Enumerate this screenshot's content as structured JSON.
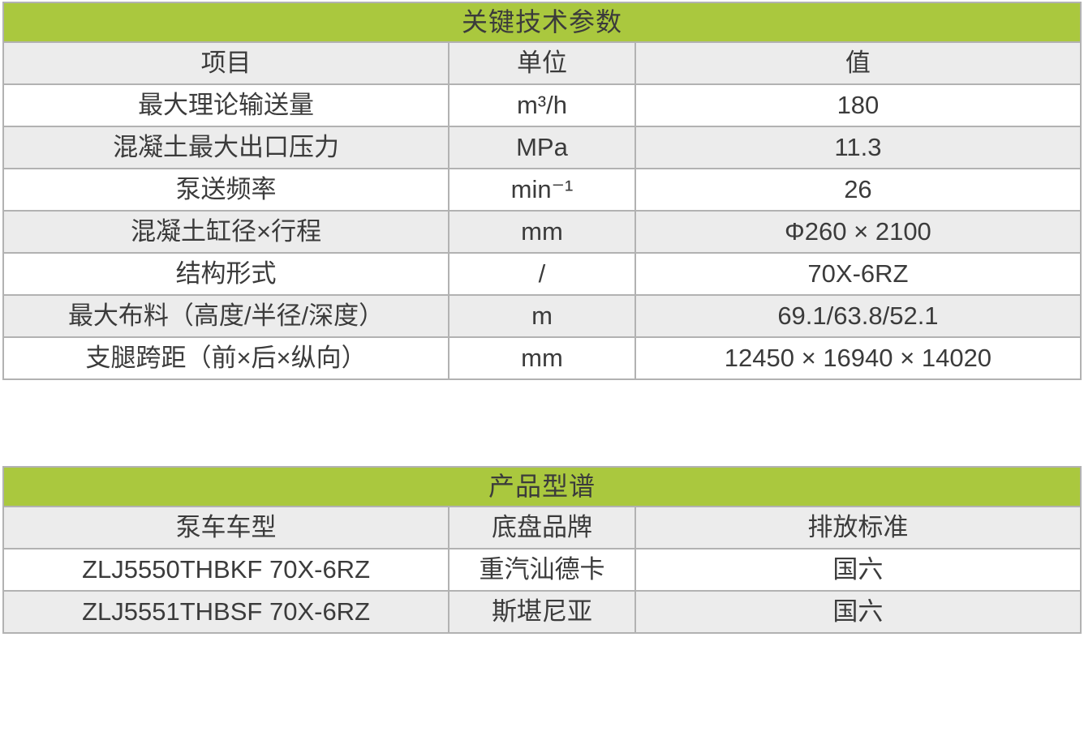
{
  "colors": {
    "accent": "#aac83e",
    "row_alt": "#ececec",
    "border": "#b2b2b2",
    "text": "#3b3b3b"
  },
  "spec_table": {
    "title": "关键技术参数",
    "headers": {
      "item": "项目",
      "unit": "单位",
      "value": "值"
    },
    "rows": [
      {
        "item": "最大理论输送量",
        "unit": "m³/h",
        "value": "180"
      },
      {
        "item": "混凝土最大出口压力",
        "unit": "MPa",
        "value": "11.3"
      },
      {
        "item": "泵送频率",
        "unit": "min⁻¹",
        "value": "26"
      },
      {
        "item": "混凝土缸径×行程",
        "unit": "mm",
        "value": "Φ260 × 2100"
      },
      {
        "item": "结构形式",
        "unit": "/",
        "value": "70X-6RZ"
      },
      {
        "item": "最大布料（高度/半径/深度）",
        "unit": "m",
        "value": "69.1/63.8/52.1"
      },
      {
        "item": "支腿跨距（前×后×纵向）",
        "unit": "mm",
        "value": "12450 × 16940 × 14020"
      }
    ]
  },
  "model_table": {
    "title": "产品型谱",
    "headers": {
      "model": "泵车车型",
      "chassis": "底盘品牌",
      "emission": "排放标准"
    },
    "rows": [
      {
        "model": "ZLJ5550THBKF 70X-6RZ",
        "chassis": "重汽汕德卡",
        "emission": "国六"
      },
      {
        "model": "ZLJ5551THBSF 70X-6RZ",
        "chassis": "斯堪尼亚",
        "emission": "国六"
      }
    ]
  }
}
